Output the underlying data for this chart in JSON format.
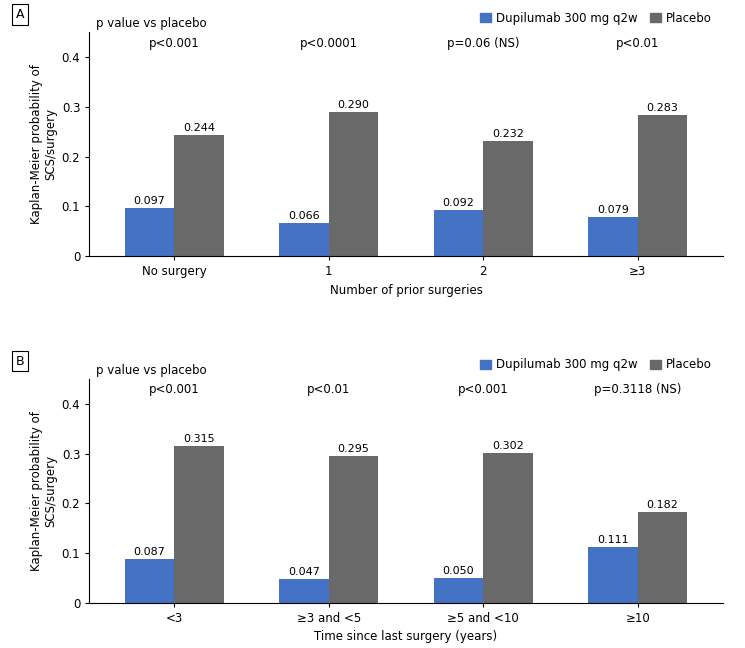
{
  "panel_A": {
    "categories": [
      "No surgery",
      "1",
      "2",
      "≥3"
    ],
    "dupilumab": [
      0.097,
      0.066,
      0.092,
      0.079
    ],
    "placebo": [
      0.244,
      0.29,
      0.232,
      0.283
    ],
    "pvalues": [
      "p<0.001",
      "p<0.0001",
      "p=0.06 (NS)",
      "p<0.01"
    ],
    "xlabel": "Number of prior surgeries",
    "ylabel": "Kaplan-Meier probability of\nSCS/surgery",
    "ylim": [
      0,
      0.45
    ],
    "yticks": [
      0,
      0.1,
      0.2,
      0.3,
      0.4
    ],
    "panel_label": "A"
  },
  "panel_B": {
    "categories": [
      "<3",
      "≥3 and <5",
      "≥5 and <10",
      "≥10"
    ],
    "dupilumab": [
      0.087,
      0.047,
      0.05,
      0.111
    ],
    "placebo": [
      0.315,
      0.295,
      0.302,
      0.182
    ],
    "pvalues": [
      "p<0.001",
      "p<0.01",
      "p<0.001",
      "p=0.3118 (NS)"
    ],
    "xlabel": "Time since last surgery (years)",
    "ylabel": "Kaplan-Meier probability of\nSCS/surgery",
    "ylim": [
      0,
      0.45
    ],
    "yticks": [
      0,
      0.1,
      0.2,
      0.3,
      0.4
    ],
    "panel_label": "B"
  },
  "dupilumab_color": "#4472C4",
  "placebo_color": "#696969",
  "bar_width": 0.32,
  "legend_dupilumab": "Dupilumab 300 mg q2w",
  "legend_placebo": "Placebo",
  "pvalue_label": "p value vs placebo",
  "background_color": "#ffffff",
  "label_fontsize": 8.5,
  "tick_fontsize": 8.5,
  "pvalue_fontsize": 8.5,
  "bar_label_fontsize": 8,
  "legend_fontsize": 8.5,
  "panel_label_fontsize": 9
}
